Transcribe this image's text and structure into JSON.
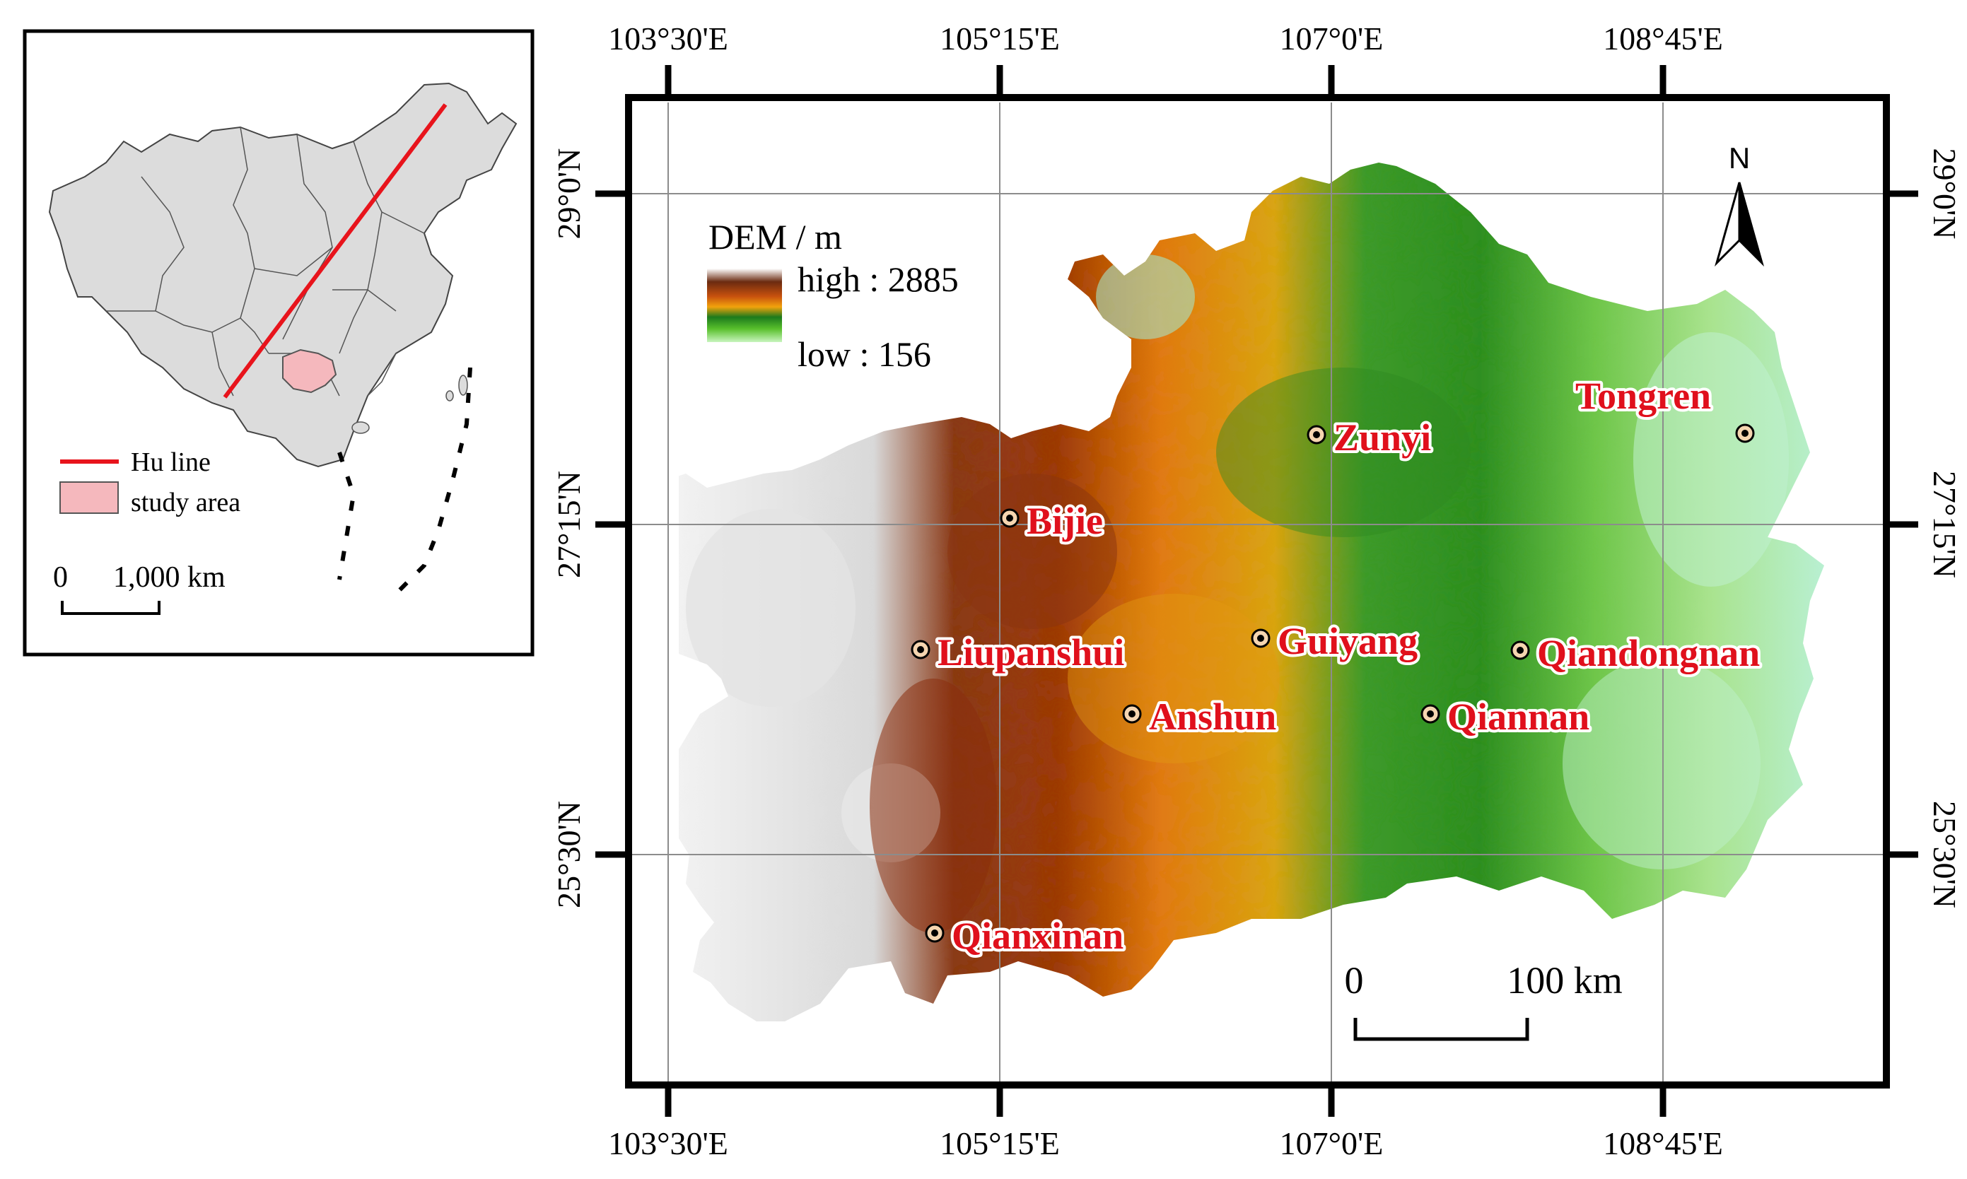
{
  "inset": {
    "legend": {
      "hu_line_label": "Hu line",
      "study_area_label": "study area"
    },
    "scale": {
      "zero": "0",
      "distance": "1,000 km"
    },
    "colors": {
      "hu_line": "#e8141c",
      "study_area": "#f5b8bd",
      "country": "#dcdcdc"
    }
  },
  "map": {
    "longitude_labels": [
      "103°30'E",
      "105°15'E",
      "107°0'E",
      "108°45'E"
    ],
    "latitude_labels": [
      "29°0'N",
      "27°15'N",
      "25°30'N"
    ],
    "north_arrow": {
      "label": "N",
      "icon": "north-arrow-icon"
    },
    "legend": {
      "title": "DEM / m",
      "high_label": "high : 2885",
      "low_label": "low : 156",
      "ramp_colors": [
        "#ffffff",
        "#6b2a10",
        "#c8520e",
        "#f2a20c",
        "#1c7a1c",
        "#59c02c",
        "#c9f5bf"
      ]
    },
    "scale": {
      "zero": "0",
      "distance": "100 km"
    },
    "cities": [
      {
        "name": "Bijie"
      },
      {
        "name": "Zunyi"
      },
      {
        "name": "Tongren"
      },
      {
        "name": "Liupanshui"
      },
      {
        "name": "Guiyang"
      },
      {
        "name": "Qiandongnan"
      },
      {
        "name": "Anshun"
      },
      {
        "name": "Qiannan"
      },
      {
        "name": "Qianxinan"
      }
    ],
    "label_color": "#e0101c"
  }
}
